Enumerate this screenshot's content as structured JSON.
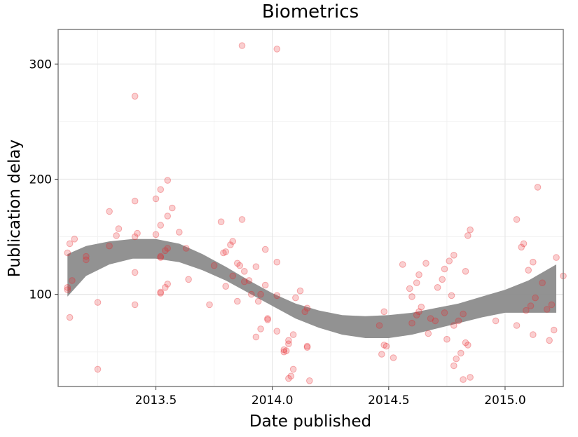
{
  "chart_data": {
    "type": "scatter",
    "title": "Biometrics",
    "xlabel": "Date published",
    "ylabel": "Publication delay",
    "xlim": [
      2013.08,
      2015.25
    ],
    "ylim": [
      20,
      330
    ],
    "x_ticks": [
      2013.5,
      2014.0,
      2014.5,
      2015.0
    ],
    "x_tick_labels": [
      "2013.5",
      "2014.0",
      "2014.5",
      "2015.0"
    ],
    "y_ticks": [
      100,
      200,
      300
    ],
    "y_tick_labels": [
      "100",
      "200",
      "300"
    ],
    "grid": true,
    "legend": "none",
    "point_color": "#e8262b",
    "band_color": "#8c8c8c",
    "points": [
      [
        2013.12,
        136
      ],
      [
        2013.12,
        106
      ],
      [
        2013.12,
        104
      ],
      [
        2013.13,
        80
      ],
      [
        2013.13,
        144
      ],
      [
        2013.14,
        112
      ],
      [
        2013.15,
        148
      ],
      [
        2013.2,
        130
      ],
      [
        2013.2,
        133
      ],
      [
        2013.25,
        93
      ],
      [
        2013.25,
        35
      ],
      [
        2013.3,
        172
      ],
      [
        2013.3,
        142
      ],
      [
        2013.33,
        151
      ],
      [
        2013.34,
        157
      ],
      [
        2013.41,
        272
      ],
      [
        2013.41,
        181
      ],
      [
        2013.41,
        150
      ],
      [
        2013.42,
        153
      ],
      [
        2013.41,
        119
      ],
      [
        2013.41,
        91
      ],
      [
        2013.5,
        152
      ],
      [
        2013.5,
        183
      ],
      [
        2013.52,
        191
      ],
      [
        2013.52,
        160
      ],
      [
        2013.52,
        132
      ],
      [
        2013.52,
        133
      ],
      [
        2013.52,
        101
      ],
      [
        2013.52,
        102
      ],
      [
        2013.54,
        106
      ],
      [
        2013.55,
        109
      ],
      [
        2013.55,
        168
      ],
      [
        2013.55,
        199
      ],
      [
        2013.54,
        138
      ],
      [
        2013.55,
        140
      ],
      [
        2013.57,
        175
      ],
      [
        2013.6,
        154
      ],
      [
        2013.63,
        140
      ],
      [
        2013.64,
        113
      ],
      [
        2013.73,
        91
      ],
      [
        2013.75,
        125
      ],
      [
        2013.78,
        163
      ],
      [
        2013.79,
        136
      ],
      [
        2013.8,
        137
      ],
      [
        2013.8,
        107
      ],
      [
        2013.82,
        143
      ],
      [
        2013.83,
        146
      ],
      [
        2013.83,
        116
      ],
      [
        2013.85,
        127
      ],
      [
        2013.86,
        125
      ],
      [
        2013.85,
        94
      ],
      [
        2013.87,
        316
      ],
      [
        2013.87,
        165
      ],
      [
        2013.88,
        120
      ],
      [
        2013.88,
        111
      ],
      [
        2013.9,
        112
      ],
      [
        2013.91,
        100
      ],
      [
        2013.93,
        63
      ],
      [
        2013.93,
        124
      ],
      [
        2013.94,
        94
      ],
      [
        2013.95,
        100
      ],
      [
        2013.95,
        70
      ],
      [
        2013.97,
        108
      ],
      [
        2013.97,
        139
      ],
      [
        2013.98,
        78
      ],
      [
        2013.98,
        79
      ],
      [
        2014.02,
        313
      ],
      [
        2014.02,
        128
      ],
      [
        2014.02,
        99
      ],
      [
        2014.02,
        68
      ],
      [
        2014.05,
        50
      ],
      [
        2014.05,
        52
      ],
      [
        2014.06,
        51
      ],
      [
        2014.07,
        57
      ],
      [
        2014.07,
        60
      ],
      [
        2014.07,
        27
      ],
      [
        2014.08,
        29
      ],
      [
        2014.09,
        65
      ],
      [
        2014.09,
        35
      ],
      [
        2014.1,
        97
      ],
      [
        2014.12,
        103
      ],
      [
        2014.14,
        85
      ],
      [
        2014.15,
        88
      ],
      [
        2014.15,
        54
      ],
      [
        2014.15,
        55
      ],
      [
        2014.16,
        25
      ],
      [
        2014.46,
        73
      ],
      [
        2014.47,
        48
      ],
      [
        2014.48,
        85
      ],
      [
        2014.48,
        56
      ],
      [
        2014.49,
        55
      ],
      [
        2014.52,
        45
      ],
      [
        2014.56,
        126
      ],
      [
        2014.59,
        105
      ],
      [
        2014.6,
        75
      ],
      [
        2014.6,
        98
      ],
      [
        2014.62,
        110
      ],
      [
        2014.62,
        82
      ],
      [
        2014.63,
        117
      ],
      [
        2014.63,
        85
      ],
      [
        2014.64,
        89
      ],
      [
        2014.66,
        127
      ],
      [
        2014.67,
        66
      ],
      [
        2014.68,
        79
      ],
      [
        2014.7,
        77
      ],
      [
        2014.71,
        106
      ],
      [
        2014.73,
        113
      ],
      [
        2014.74,
        84
      ],
      [
        2014.74,
        122
      ],
      [
        2014.75,
        61
      ],
      [
        2014.76,
        129
      ],
      [
        2014.77,
        99
      ],
      [
        2014.78,
        38
      ],
      [
        2014.78,
        73
      ],
      [
        2014.78,
        134
      ],
      [
        2014.79,
        44
      ],
      [
        2014.8,
        77
      ],
      [
        2014.81,
        49
      ],
      [
        2014.82,
        83
      ],
      [
        2014.82,
        26
      ],
      [
        2014.83,
        58
      ],
      [
        2014.83,
        120
      ],
      [
        2014.84,
        151
      ],
      [
        2014.84,
        56
      ],
      [
        2014.85,
        156
      ],
      [
        2014.85,
        28
      ],
      [
        2014.96,
        77
      ],
      [
        2015.05,
        73
      ],
      [
        2015.05,
        165
      ],
      [
        2015.07,
        141
      ],
      [
        2015.08,
        144
      ],
      [
        2015.09,
        86
      ],
      [
        2015.1,
        121
      ],
      [
        2015.11,
        90
      ],
      [
        2015.12,
        128
      ],
      [
        2015.12,
        65
      ],
      [
        2015.13,
        97
      ],
      [
        2015.14,
        193
      ],
      [
        2015.16,
        110
      ],
      [
        2015.18,
        87
      ],
      [
        2015.19,
        60
      ],
      [
        2015.2,
        91
      ],
      [
        2015.21,
        69
      ],
      [
        2015.22,
        132
      ],
      [
        2015.25,
        116
      ]
    ],
    "smooth_band": {
      "x": [
        2013.12,
        2013.2,
        2013.3,
        2013.4,
        2013.5,
        2013.6,
        2013.7,
        2013.8,
        2013.9,
        2014.0,
        2014.1,
        2014.2,
        2014.3,
        2014.4,
        2014.5,
        2014.6,
        2014.7,
        2014.8,
        2014.9,
        2015.0,
        2015.1,
        2015.22
      ],
      "lower": [
        98,
        116,
        126,
        131,
        131,
        128,
        121,
        112,
        101,
        90,
        79,
        71,
        65,
        62,
        62,
        65,
        70,
        75,
        80,
        84,
        84,
        84
      ],
      "upper": [
        135,
        142,
        146,
        148,
        148,
        144,
        135,
        124,
        112,
        101,
        92,
        86,
        82,
        81,
        82,
        84,
        88,
        92,
        98,
        104,
        112,
        126
      ]
    }
  }
}
